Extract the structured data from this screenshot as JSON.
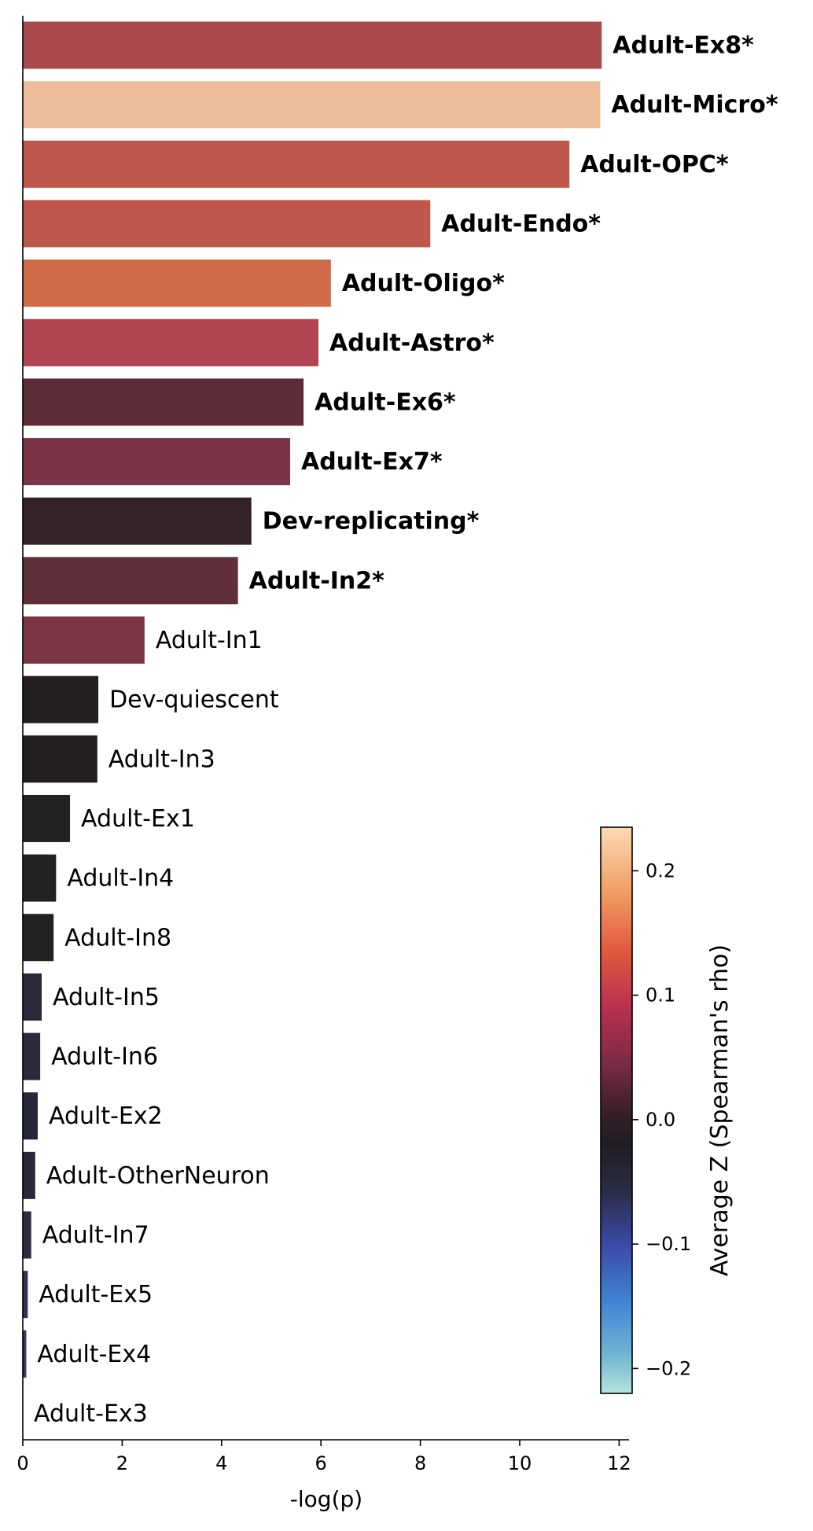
{
  "chart_data": {
    "type": "bar",
    "orientation": "horizontal",
    "xlabel": "-log(p)",
    "xlim": [
      0,
      12.2
    ],
    "xticks": [
      0,
      2,
      4,
      6,
      8,
      10,
      12
    ],
    "grid": false,
    "bars": [
      {
        "label": "Adult-Ex8*",
        "value": 11.65,
        "bold": true,
        "color": "#ab4a4d"
      },
      {
        "label": "Adult-Micro*",
        "value": 11.62,
        "bold": true,
        "color": "#ebbd98"
      },
      {
        "label": "Adult-OPC*",
        "value": 11.0,
        "bold": true,
        "color": "#bf574a"
      },
      {
        "label": "Adult-Endo*",
        "value": 8.2,
        "bold": true,
        "color": "#bf584b"
      },
      {
        "label": "Adult-Oligo*",
        "value": 6.2,
        "bold": true,
        "color": "#cf6b47"
      },
      {
        "label": "Adult-Astro*",
        "value": 5.95,
        "bold": true,
        "color": "#b04450"
      },
      {
        "label": "Adult-Ex6*",
        "value": 5.65,
        "bold": true,
        "color": "#5c2d36"
      },
      {
        "label": "Adult-Ex7*",
        "value": 5.38,
        "bold": true,
        "color": "#7a3445"
      },
      {
        "label": "Dev-replicating*",
        "value": 4.6,
        "bold": true,
        "color": "#332226"
      },
      {
        "label": "Adult-In2*",
        "value": 4.33,
        "bold": true,
        "color": "#5f2f3a"
      },
      {
        "label": "Adult-In1",
        "value": 2.45,
        "bold": false,
        "color": "#7d3546"
      },
      {
        "label": "Dev-quiescent",
        "value": 1.52,
        "bold": false,
        "color": "#231f21"
      },
      {
        "label": "Adult-In3",
        "value": 1.5,
        "bold": false,
        "color": "#231f21"
      },
      {
        "label": "Adult-Ex1",
        "value": 0.95,
        "bold": false,
        "color": "#222224"
      },
      {
        "label": "Adult-In4",
        "value": 0.67,
        "bold": false,
        "color": "#222225"
      },
      {
        "label": "Adult-In8",
        "value": 0.62,
        "bold": false,
        "color": "#222225"
      },
      {
        "label": "Adult-In5",
        "value": 0.38,
        "bold": false,
        "color": "#2a2a3a"
      },
      {
        "label": "Adult-In6",
        "value": 0.35,
        "bold": false,
        "color": "#2a2a3a"
      },
      {
        "label": "Adult-Ex2",
        "value": 0.3,
        "bold": false,
        "color": "#27273a"
      },
      {
        "label": "Adult-OtherNeuron",
        "value": 0.25,
        "bold": false,
        "color": "#282838"
      },
      {
        "label": "Adult-In7",
        "value": 0.17,
        "bold": false,
        "color": "#2c2c40"
      },
      {
        "label": "Adult-Ex5",
        "value": 0.1,
        "bold": false,
        "color": "#333356"
      },
      {
        "label": "Adult-Ex4",
        "value": 0.07,
        "bold": false,
        "color": "#363660"
      },
      {
        "label": "Adult-Ex3",
        "value": 0.0,
        "bold": false,
        "color": "#2a2a3a"
      }
    ],
    "colorbar": {
      "label": "Average Z (Spearman's rho)",
      "vmin": -0.22,
      "vmax": 0.235,
      "ticks": [
        {
          "value": 0.2,
          "label": "0.2"
        },
        {
          "value": 0.1,
          "label": "0.1"
        },
        {
          "value": 0.0,
          "label": "0.0"
        },
        {
          "value": -0.1,
          "label": "−0.1"
        },
        {
          "value": -0.2,
          "label": "−0.2"
        }
      ],
      "gradient_stops": [
        {
          "offset": 0.0,
          "color": "#fdd9b5"
        },
        {
          "offset": 0.12,
          "color": "#f09a60"
        },
        {
          "offset": 0.22,
          "color": "#e0583e"
        },
        {
          "offset": 0.32,
          "color": "#b8304e"
        },
        {
          "offset": 0.42,
          "color": "#7a2a45"
        },
        {
          "offset": 0.5,
          "color": "#3a2028"
        },
        {
          "offset": 0.56,
          "color": "#1e1e22"
        },
        {
          "offset": 0.64,
          "color": "#2b2b45"
        },
        {
          "offset": 0.74,
          "color": "#3b4aa8"
        },
        {
          "offset": 0.84,
          "color": "#3f85d6"
        },
        {
          "offset": 0.93,
          "color": "#6fb4d2"
        },
        {
          "offset": 1.0,
          "color": "#b4e3da"
        }
      ]
    }
  }
}
